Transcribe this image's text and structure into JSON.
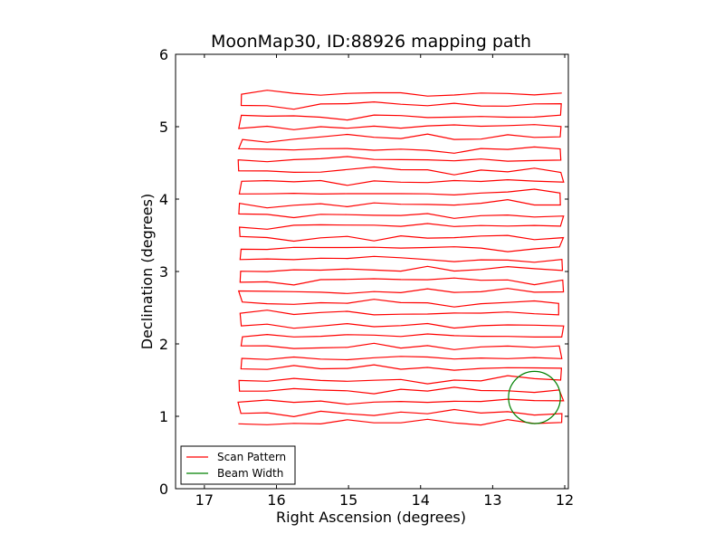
{
  "chart_data": {
    "type": "line",
    "title": "MoonMap30, ID:88926 mapping path",
    "xlabel": "Right Ascension (degrees)",
    "ylabel": "Declination (degrees)",
    "xlim": [
      17.4,
      11.95
    ],
    "ylim": [
      0,
      6
    ],
    "xticks": [
      17,
      16,
      15,
      14,
      13,
      12
    ],
    "yticks": [
      0,
      1,
      2,
      3,
      4,
      5,
      6
    ],
    "legend_position": "lower-left",
    "grid": false,
    "series": [
      {
        "name": "Scan Pattern",
        "color": "#ff0000",
        "kind": "raster-scan",
        "ra_start": 16.5,
        "ra_end": 12.05,
        "dec_start": 0.9,
        "dec_end": 5.45,
        "num_legs": 31,
        "ra_jitter": 0.07,
        "dec_jitter": 0.04
      },
      {
        "name": "Beam Width",
        "color": "#008000",
        "kind": "circle",
        "center_ra": 12.42,
        "center_dec": 1.26,
        "radius": 0.36
      }
    ]
  }
}
